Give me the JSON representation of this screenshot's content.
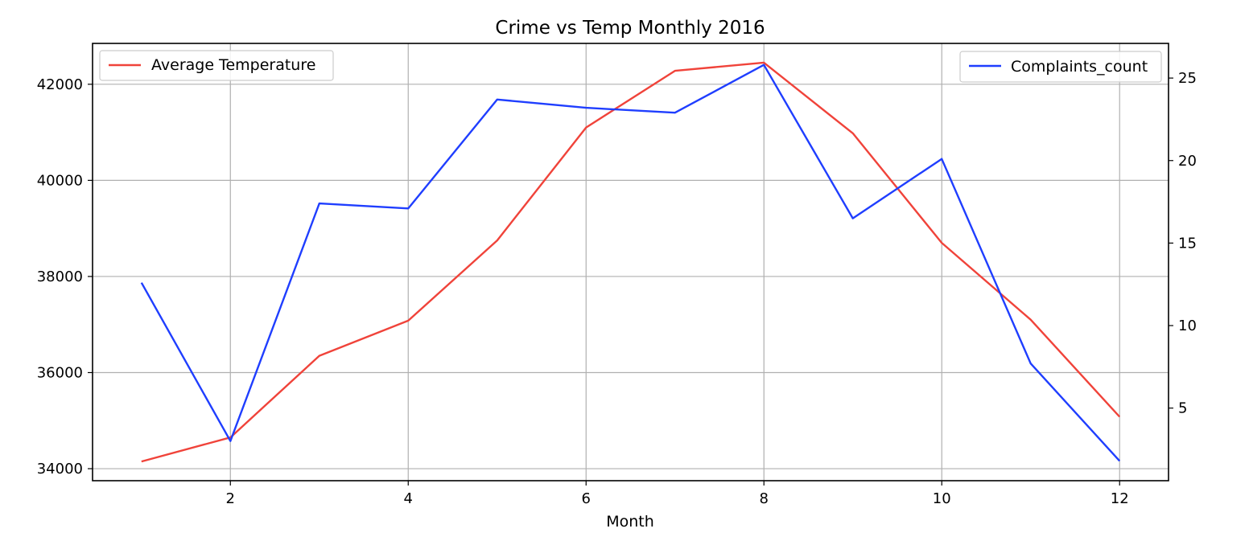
{
  "chart_data": {
    "type": "line",
    "title": "Crime vs Temp Monthly 2016",
    "xlabel": "Month",
    "x": [
      1,
      2,
      3,
      4,
      5,
      6,
      7,
      8,
      9,
      10,
      11,
      12
    ],
    "xlim": [
      0.45,
      12.55
    ],
    "xticks": [
      2,
      4,
      6,
      8,
      10,
      12
    ],
    "grid": true,
    "axes": {
      "left": {
        "ylim": [
          33750,
          42850
        ],
        "ticks": [
          34000,
          36000,
          38000,
          40000,
          42000
        ]
      },
      "right": {
        "ylim": [
          0.6,
          27.1
        ],
        "ticks": [
          5,
          10,
          15,
          20,
          25
        ]
      }
    },
    "series": [
      {
        "name": "Average Temperature",
        "axis": "left",
        "color": "#f0433a",
        "legend_position": "upper-left",
        "values": [
          34150,
          34650,
          36350,
          37080,
          38750,
          41100,
          42280,
          42450,
          40980,
          38700,
          37100,
          35080
        ]
      },
      {
        "name": "Complaints_count",
        "axis": "right",
        "color": "#1f3eff",
        "legend_position": "upper-right",
        "values": [
          12.6,
          3.0,
          17.4,
          17.1,
          23.7,
          23.2,
          22.9,
          25.8,
          16.5,
          20.1,
          7.7,
          1.8
        ]
      }
    ]
  }
}
